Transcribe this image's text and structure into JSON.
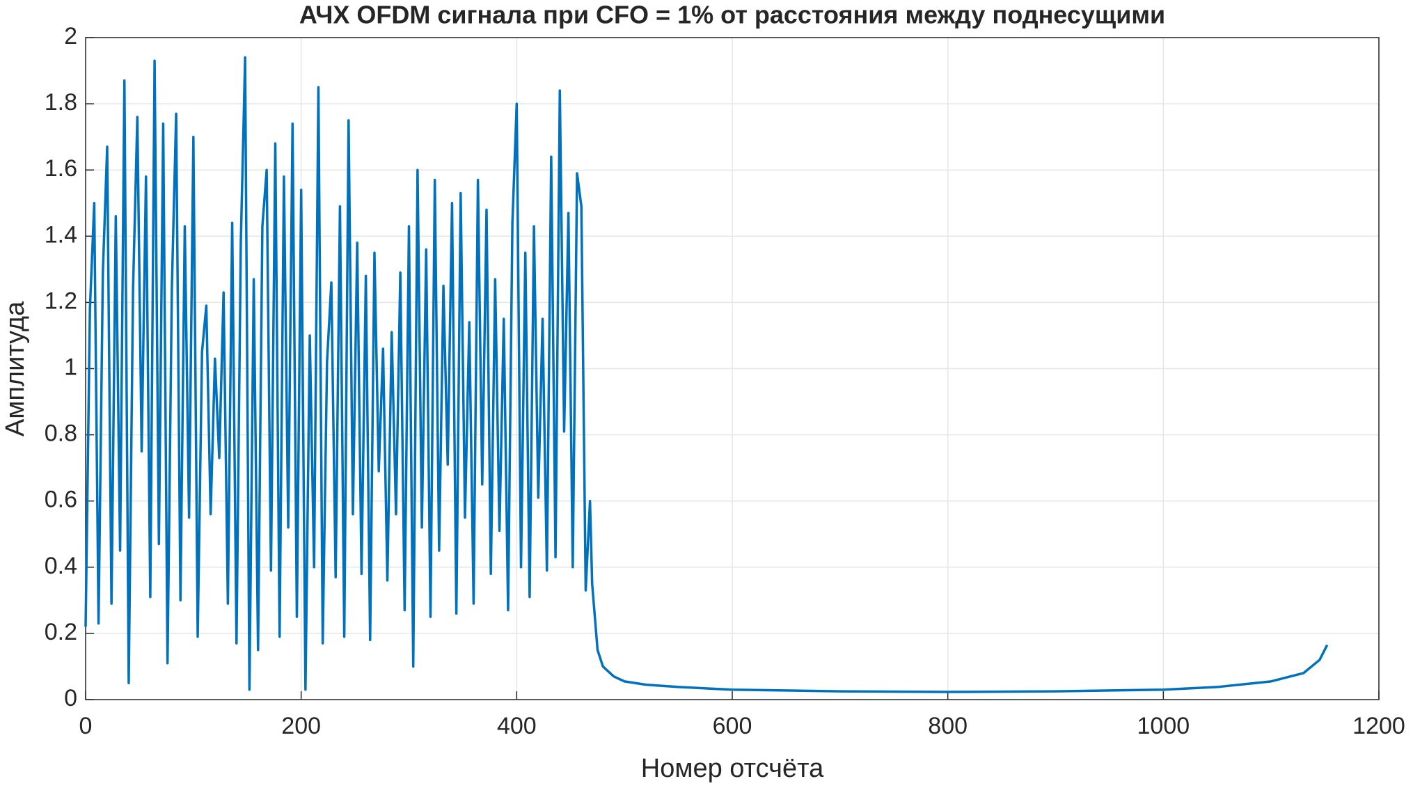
{
  "chart_data": {
    "type": "line",
    "title": "АЧХ OFDM сигнала при CFO = 1% от расстояния между поднесущими",
    "xlabel": "Номер отсчёта",
    "ylabel": "Амплитуда",
    "xlim": [
      0,
      1200
    ],
    "xticks": [
      0,
      200,
      400,
      600,
      800,
      1000,
      1200
    ],
    "ylim": [
      0,
      2
    ],
    "yticks": [
      0,
      0.2,
      0.4,
      0.6,
      0.8,
      1,
      1.2,
      1.4,
      1.6,
      1.8,
      2
    ],
    "grid": true,
    "x": [
      0,
      4,
      8,
      12,
      16,
      20,
      24,
      28,
      32,
      36,
      40,
      44,
      48,
      52,
      56,
      60,
      64,
      68,
      72,
      76,
      80,
      84,
      88,
      92,
      96,
      100,
      104,
      108,
      112,
      116,
      120,
      124,
      128,
      132,
      136,
      140,
      144,
      148,
      152,
      156,
      160,
      164,
      168,
      172,
      176,
      180,
      184,
      188,
      192,
      196,
      200,
      204,
      208,
      212,
      216,
      220,
      224,
      228,
      232,
      236,
      240,
      244,
      248,
      252,
      256,
      260,
      264,
      268,
      272,
      276,
      280,
      284,
      288,
      292,
      296,
      300,
      304,
      308,
      312,
      316,
      320,
      324,
      328,
      332,
      336,
      340,
      344,
      348,
      352,
      356,
      360,
      364,
      368,
      372,
      376,
      380,
      384,
      388,
      392,
      396,
      400,
      404,
      408,
      412,
      416,
      420,
      424,
      428,
      432,
      436,
      440,
      444,
      448,
      452,
      456,
      460,
      464,
      468,
      470,
      475,
      480,
      490,
      500,
      520,
      550,
      600,
      700,
      800,
      900,
      1000,
      1050,
      1100,
      1130,
      1145,
      1152
    ],
    "series": [
      {
        "color": "#0072bd",
        "values": [
          0.22,
          1.18,
          1.5,
          0.23,
          1.29,
          1.67,
          0.29,
          1.46,
          0.45,
          1.87,
          0.05,
          1.24,
          1.76,
          0.75,
          1.58,
          0.31,
          1.93,
          0.47,
          1.74,
          0.11,
          1.24,
          1.77,
          0.3,
          1.43,
          0.55,
          1.7,
          0.19,
          1.05,
          1.19,
          0.56,
          1.03,
          0.73,
          1.23,
          0.29,
          1.44,
          0.17,
          1.38,
          1.94,
          0.03,
          1.27,
          0.15,
          1.43,
          1.6,
          0.39,
          1.68,
          0.19,
          1.58,
          0.52,
          1.74,
          0.25,
          1.54,
          0.03,
          1.1,
          0.4,
          1.85,
          0.17,
          1.02,
          1.26,
          0.37,
          1.49,
          0.19,
          1.75,
          0.56,
          1.38,
          0.38,
          1.28,
          0.18,
          1.35,
          0.69,
          1.06,
          0.36,
          1.11,
          0.56,
          1.29,
          0.27,
          1.43,
          0.1,
          1.6,
          0.52,
          1.36,
          0.25,
          1.57,
          0.45,
          1.25,
          0.71,
          1.5,
          0.26,
          1.53,
          0.55,
          1.14,
          0.29,
          1.57,
          0.65,
          1.48,
          0.38,
          1.27,
          0.51,
          1.15,
          0.27,
          1.44,
          1.8,
          0.4,
          1.35,
          0.31,
          1.43,
          0.61,
          1.15,
          0.39,
          1.64,
          0.43,
          1.84,
          0.81,
          1.47,
          0.4,
          1.59,
          1.49,
          0.33,
          0.6,
          0.35,
          0.15,
          0.1,
          0.07,
          0.055,
          0.045,
          0.038,
          0.03,
          0.025,
          0.023,
          0.025,
          0.03,
          0.038,
          0.055,
          0.08,
          0.12,
          0.165
        ]
      }
    ]
  }
}
